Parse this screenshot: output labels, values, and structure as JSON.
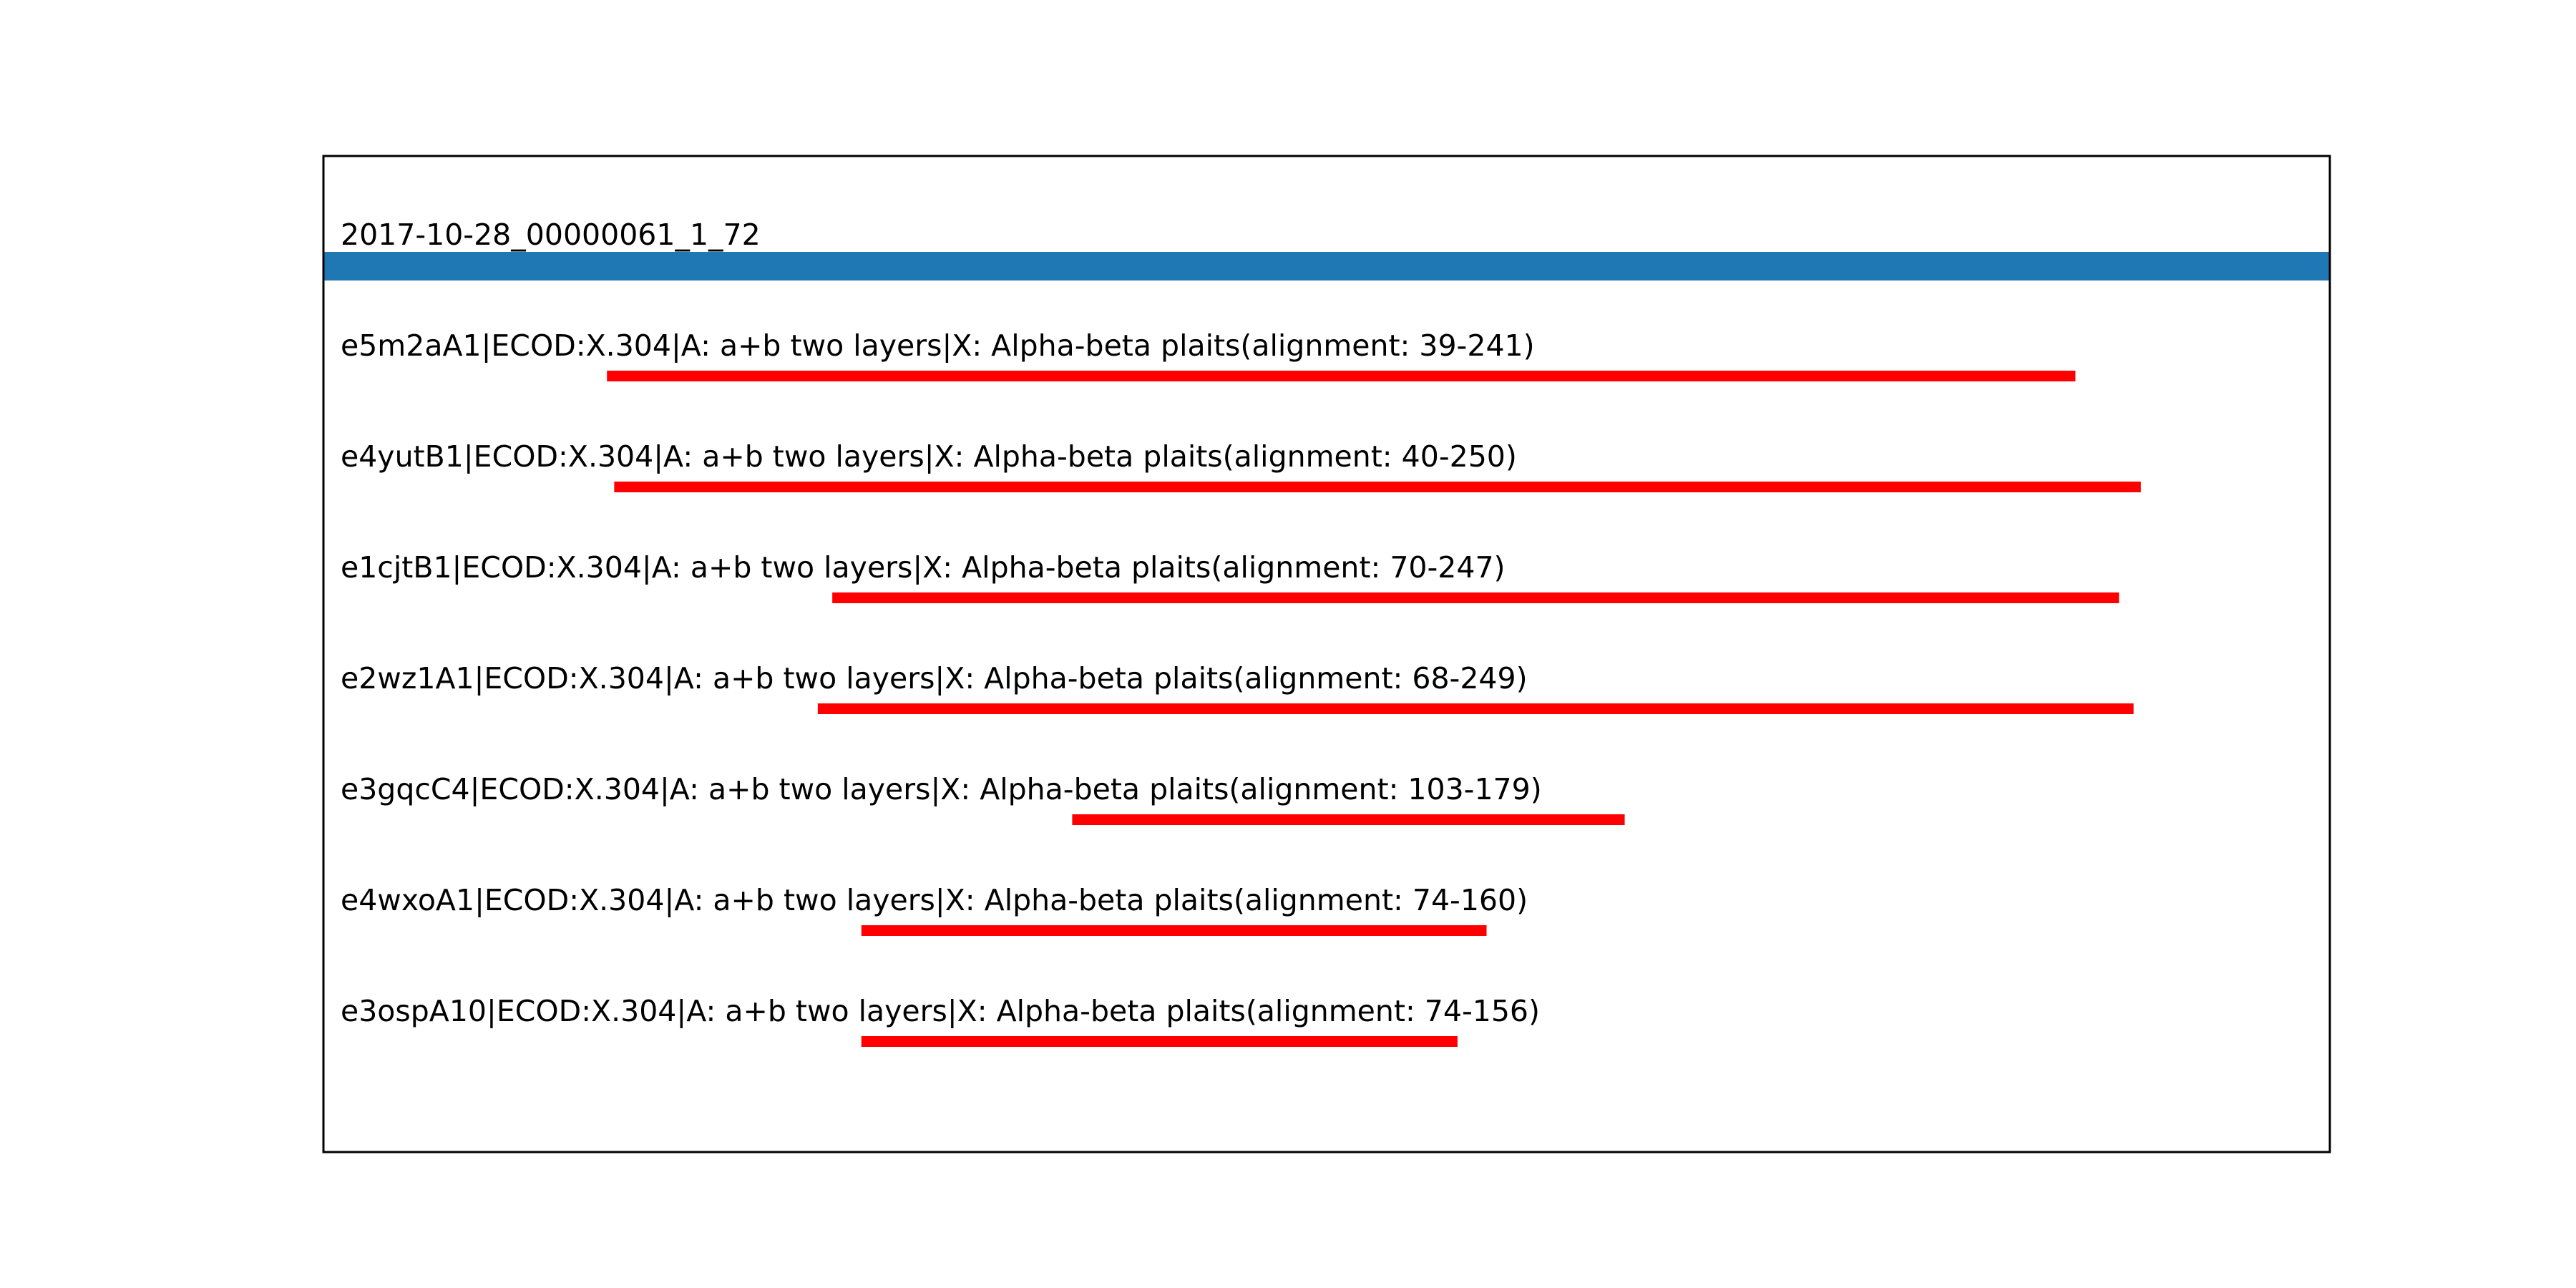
{
  "chart_data": {
    "type": "bar",
    "query": {
      "label": "2017-10-28_00000061_1_72",
      "start": 1,
      "end": 276,
      "color": "#1f77b4"
    },
    "hits": [
      {
        "label": "e5m2aA1|ECOD:X.304|A: a+b two layers|X: Alpha-beta plaits(alignment: 39-241)",
        "start": 39,
        "end": 241
      },
      {
        "label": "e4yutB1|ECOD:X.304|A: a+b two layers|X: Alpha-beta plaits(alignment: 40-250)",
        "start": 40,
        "end": 250
      },
      {
        "label": "e1cjtB1|ECOD:X.304|A: a+b two layers|X: Alpha-beta plaits(alignment: 70-247)",
        "start": 70,
        "end": 247
      },
      {
        "label": "e2wz1A1|ECOD:X.304|A: a+b two layers|X: Alpha-beta plaits(alignment: 68-249)",
        "start": 68,
        "end": 249
      },
      {
        "label": "e3gqcC4|ECOD:X.304|A: a+b two layers|X: Alpha-beta plaits(alignment: 103-179)",
        "start": 103,
        "end": 179
      },
      {
        "label": "e4wxoA1|ECOD:X.304|A: a+b two layers|X: Alpha-beta plaits(alignment: 74-160)",
        "start": 74,
        "end": 160
      },
      {
        "label": "e3ospA10|ECOD:X.304|A: a+b two layers|X: Alpha-beta plaits(alignment: 74-156)",
        "start": 74,
        "end": 156
      }
    ],
    "hit_color": "#ff0000",
    "xlim": [
      0,
      276
    ],
    "frame_color": "#000000"
  }
}
